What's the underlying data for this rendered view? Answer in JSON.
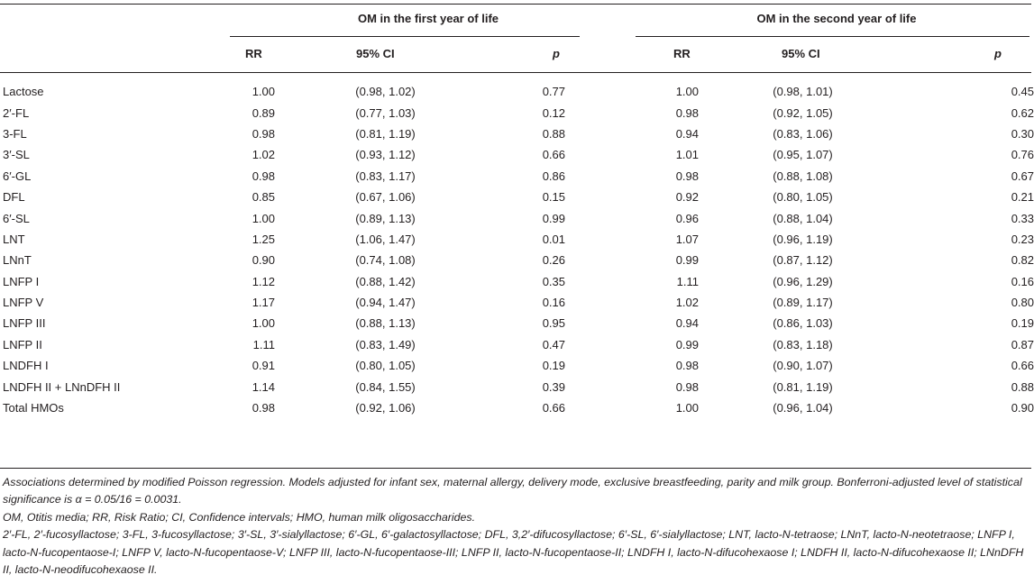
{
  "group_headers": {
    "first_year": "OM in the first year of life",
    "second_year": "OM in the second year of life"
  },
  "column_headers": {
    "rr1": "RR",
    "ci1": "95% CI",
    "p1": "p",
    "rr2": "RR",
    "ci2": "95% CI",
    "p2": "p"
  },
  "rows": [
    {
      "name": "Lactose",
      "rr1": "1.00",
      "ci1": "(0.98, 1.02)",
      "p1": "0.77",
      "rr2": "1.00",
      "ci2": "(0.98, 1.01)",
      "p2": "0.45"
    },
    {
      "name": "2′-FL",
      "rr1": "0.89",
      "ci1": "(0.77, 1.03)",
      "p1": "0.12",
      "rr2": "0.98",
      "ci2": "(0.92, 1.05)",
      "p2": "0.62"
    },
    {
      "name": "3-FL",
      "rr1": "0.98",
      "ci1": "(0.81, 1.19)",
      "p1": "0.88",
      "rr2": "0.94",
      "ci2": "(0.83, 1.06)",
      "p2": "0.30"
    },
    {
      "name": "3′-SL",
      "rr1": "1.02",
      "ci1": "(0.93, 1.12)",
      "p1": "0.66",
      "rr2": "1.01",
      "ci2": "(0.95, 1.07)",
      "p2": "0.76"
    },
    {
      "name": "6′-GL",
      "rr1": "0.98",
      "ci1": "(0.83, 1.17)",
      "p1": "0.86",
      "rr2": "0.98",
      "ci2": "(0.88, 1.08)",
      "p2": "0.67"
    },
    {
      "name": "DFL",
      "rr1": "0.85",
      "ci1": "(0.67, 1.06)",
      "p1": "0.15",
      "rr2": "0.92",
      "ci2": "(0.80, 1.05)",
      "p2": "0.21"
    },
    {
      "name": "6′-SL",
      "rr1": "1.00",
      "ci1": "(0.89, 1.13)",
      "p1": "0.99",
      "rr2": "0.96",
      "ci2": "(0.88, 1.04)",
      "p2": "0.33"
    },
    {
      "name": "LNT",
      "rr1": "1.25",
      "ci1": "(1.06, 1.47)",
      "p1": "0.01",
      "rr2": "1.07",
      "ci2": "(0.96, 1.19)",
      "p2": "0.23"
    },
    {
      "name": "LNnT",
      "rr1": "0.90",
      "ci1": "(0.74, 1.08)",
      "p1": "0.26",
      "rr2": "0.99",
      "ci2": "(0.87, 1.12)",
      "p2": "0.82"
    },
    {
      "name": "LNFP I",
      "rr1": "1.12",
      "ci1": "(0.88, 1.42)",
      "p1": "0.35",
      "rr2": "1.11",
      "ci2": "(0.96, 1.29)",
      "p2": "0.16"
    },
    {
      "name": "LNFP V",
      "rr1": "1.17",
      "ci1": "(0.94, 1.47)",
      "p1": "0.16",
      "rr2": "1.02",
      "ci2": "(0.89, 1.17)",
      "p2": "0.80"
    },
    {
      "name": "LNFP III",
      "rr1": "1.00",
      "ci1": "(0.88, 1.13)",
      "p1": "0.95",
      "rr2": "0.94",
      "ci2": "(0.86, 1.03)",
      "p2": "0.19"
    },
    {
      "name": "LNFP II",
      "rr1": "1.11",
      "ci1": "(0.83, 1.49)",
      "p1": "0.47",
      "rr2": "0.99",
      "ci2": "(0.83, 1.18)",
      "p2": "0.87"
    },
    {
      "name": "LNDFH I",
      "rr1": "0.91",
      "ci1": "(0.80, 1.05)",
      "p1": "0.19",
      "rr2": "0.98",
      "ci2": "(0.90, 1.07)",
      "p2": "0.66"
    },
    {
      "name": "LNDFH II + LNnDFH II",
      "rr1": "1.14",
      "ci1": "(0.84, 1.55)",
      "p1": "0.39",
      "rr2": "0.98",
      "ci2": "(0.81, 1.19)",
      "p2": "0.88"
    },
    {
      "name": "Total HMOs",
      "rr1": "0.98",
      "ci1": "(0.92, 1.06)",
      "p1": "0.66",
      "rr2": "1.00",
      "ci2": "(0.96, 1.04)",
      "p2": "0.90"
    }
  ],
  "footnotes": [
    "Associations determined by modified Poisson regression. Models adjusted for infant sex, maternal allergy, delivery mode, exclusive breastfeeding, parity and milk group. Bonferroni-adjusted level of statistical significance is α = 0.05/16 = 0.0031.",
    "OM, Otitis media; RR, Risk Ratio; CI, Confidence intervals; HMO, human milk oligosaccharides.",
    "2′-FL, 2′-fucosyllactose; 3-FL, 3-fucosyllactose; 3′-SL, 3′-sialyllactose; 6′-GL, 6′-galactosyllactose; DFL, 3,2′-difucosyllactose; 6′-SL, 6′-sialyllactose; LNT, lacto-N-tetraose; LNnT, lacto-N-neotetraose; LNFP I, lacto-N-fucopentaose-I; LNFP V, lacto-N-fucopentaose-V; LNFP III, lacto-N-fucopentaose-III; LNFP II, lacto-N-fucopentaose-II; LNDFH I, lacto-N-difucohexaose I; LNDFH II, lacto-N-difucohexaose II; LNnDFH II, lacto-N-neodifucohexaose II."
  ]
}
